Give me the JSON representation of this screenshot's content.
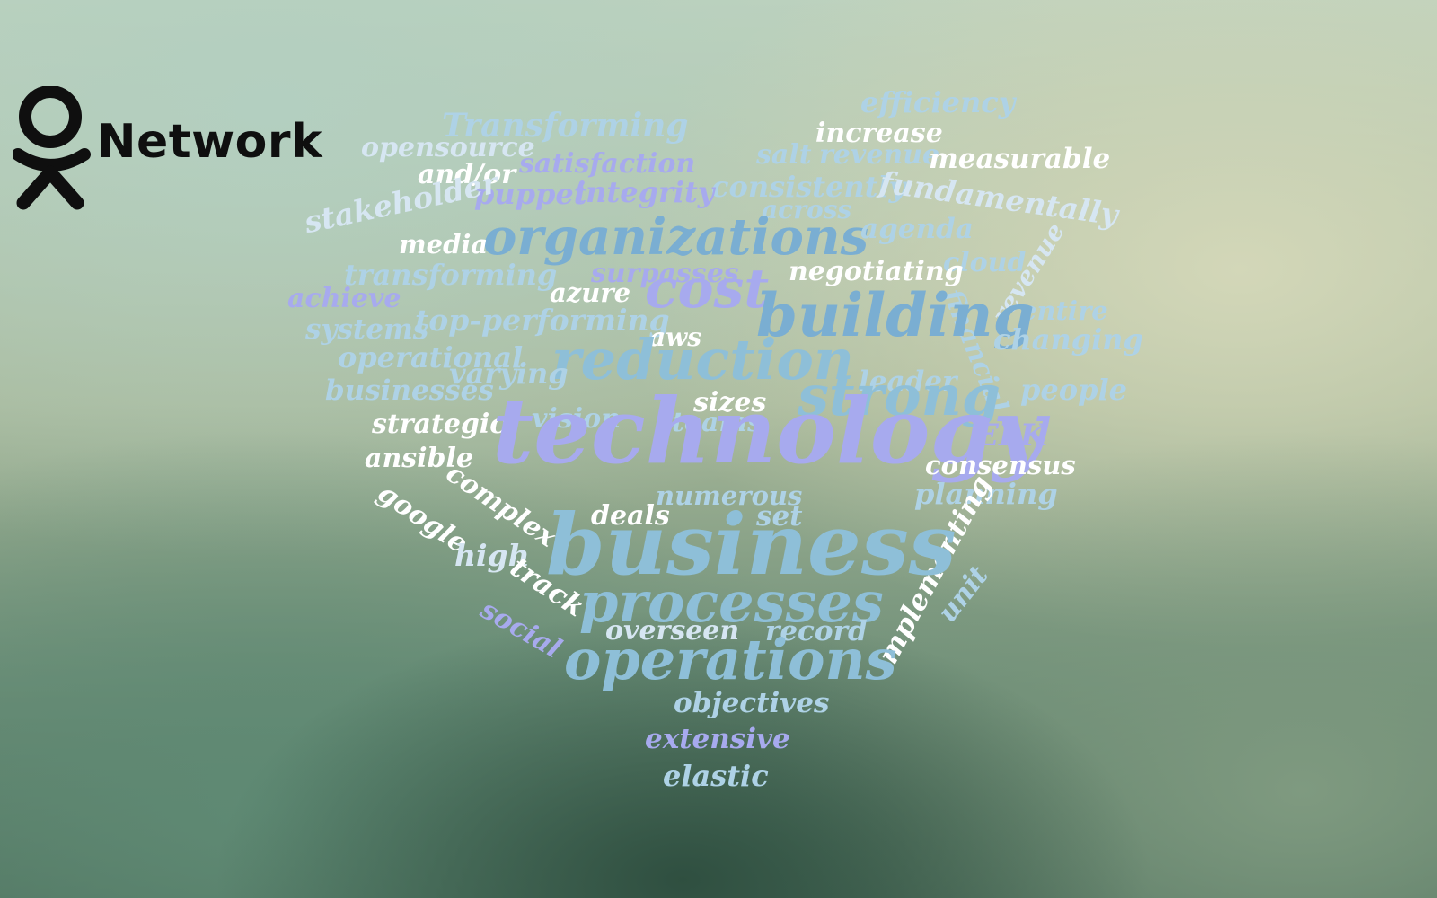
{
  "logo": {
    "text": "Network",
    "icon": "ok-person-icon"
  },
  "palette": {
    "white": "#ffffff",
    "pale": "#d6e6f2",
    "light": "#aed2e6",
    "mid": "#8ebfd8",
    "steel": "#7aaed2",
    "lavender": "#a7aaee",
    "violet": "#9a9ee6"
  },
  "word_cloud": {
    "shape": "heart",
    "words": [
      {
        "text": "efficiency",
        "color": "light"
      },
      {
        "text": "Transforming",
        "color": "light"
      },
      {
        "text": "increase",
        "color": "white"
      },
      {
        "text": "opensource",
        "color": "pale"
      },
      {
        "text": "salt",
        "color": "light"
      },
      {
        "text": "revenue",
        "color": "light"
      },
      {
        "text": "measurable",
        "color": "white"
      },
      {
        "text": "satisfaction",
        "color": "lavender"
      },
      {
        "text": "and/or",
        "color": "white"
      },
      {
        "text": "consistently",
        "color": "light"
      },
      {
        "text": "fundamentally",
        "color": "pale"
      },
      {
        "text": "puppet",
        "color": "lavender"
      },
      {
        "text": "integrity",
        "color": "lavender"
      },
      {
        "text": "across",
        "color": "light"
      },
      {
        "text": "stakeholder",
        "color": "pale"
      },
      {
        "text": "organizations",
        "color": "steel"
      },
      {
        "text": "agenda",
        "color": "light"
      },
      {
        "text": "media",
        "color": "white"
      },
      {
        "text": "cloud",
        "color": "light"
      },
      {
        "text": "revenue",
        "color": "pale"
      },
      {
        "text": "transforming",
        "color": "light"
      },
      {
        "text": "surpasses",
        "color": "lavender"
      },
      {
        "text": "negotiating",
        "color": "white"
      },
      {
        "text": "achieve",
        "color": "lavender"
      },
      {
        "text": "azure",
        "color": "white"
      },
      {
        "text": "cost",
        "color": "lavender"
      },
      {
        "text": "financial",
        "color": "light"
      },
      {
        "text": "entire",
        "color": "light"
      },
      {
        "text": "building",
        "color": "steel"
      },
      {
        "text": "systems",
        "color": "light"
      },
      {
        "text": "top-performing",
        "color": "light"
      },
      {
        "text": "changing",
        "color": "light"
      },
      {
        "text": "aws",
        "color": "white"
      },
      {
        "text": "operational",
        "color": "light"
      },
      {
        "text": "reduction",
        "color": "mid"
      },
      {
        "text": "varying",
        "color": "light"
      },
      {
        "text": "leader",
        "color": "light"
      },
      {
        "text": "businesses",
        "color": "light"
      },
      {
        "text": "people",
        "color": "light"
      },
      {
        "text": "strong",
        "color": "mid"
      },
      {
        "text": "sizes",
        "color": "white"
      },
      {
        "text": "vision",
        "color": "light"
      },
      {
        "text": "teams",
        "color": "light"
      },
      {
        "text": "strategic",
        "color": "white"
      },
      {
        "text": "ELK",
        "color": "lavender"
      },
      {
        "text": "technology",
        "color": "lavender"
      },
      {
        "text": "ansible",
        "color": "white"
      },
      {
        "text": "consensus",
        "color": "white"
      },
      {
        "text": "complex",
        "color": "white"
      },
      {
        "text": "google",
        "color": "white"
      },
      {
        "text": "numerous",
        "color": "light"
      },
      {
        "text": "planning",
        "color": "light"
      },
      {
        "text": "deals",
        "color": "white"
      },
      {
        "text": "set",
        "color": "light"
      },
      {
        "text": "implementing",
        "color": "white"
      },
      {
        "text": "business",
        "color": "mid"
      },
      {
        "text": "unit",
        "color": "light"
      },
      {
        "text": "high",
        "color": "pale"
      },
      {
        "text": "track",
        "color": "white"
      },
      {
        "text": "processes",
        "color": "mid"
      },
      {
        "text": "social",
        "color": "lavender"
      },
      {
        "text": "overseen",
        "color": "pale"
      },
      {
        "text": "record",
        "color": "light"
      },
      {
        "text": "operations",
        "color": "mid"
      },
      {
        "text": "objectives",
        "color": "light"
      },
      {
        "text": "extensive",
        "color": "lavender"
      },
      {
        "text": "elastic",
        "color": "light"
      }
    ]
  }
}
